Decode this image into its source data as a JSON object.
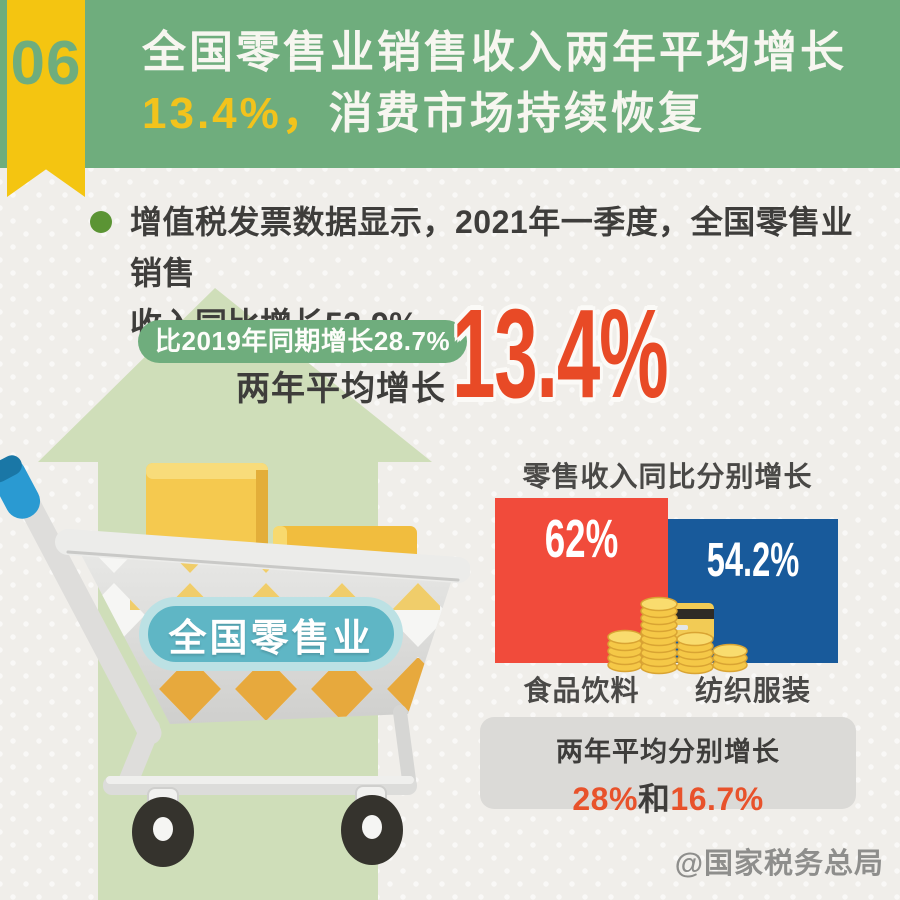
{
  "page": {
    "badge_number": "06",
    "title_line1": "全国零售业销售收入两年平均增长",
    "title_line2_highlight": "13.4%，",
    "title_line2_rest": "消费市场持续恢复",
    "watermark": "@国家税务总局"
  },
  "intro": {
    "line1": "增值税发票数据显示，2021年一季度，全国零售业销售",
    "line2": "收入同比增长52.9%"
  },
  "growth": {
    "badge": "比2019年同期增长28.7%",
    "label": "两年平均增长",
    "big_value": "13.4%"
  },
  "cart": {
    "label": "全国零售业"
  },
  "chart_data": {
    "type": "bar",
    "title": "零售收入同比分别增长",
    "categories": [
      "食品饮料",
      "纺织服装"
    ],
    "values": [
      62,
      54.2
    ],
    "value_labels": [
      "62%",
      "54.2%"
    ],
    "colors": [
      "#f14b3b",
      "#185a9b"
    ],
    "ylim": [
      0,
      62
    ],
    "grid": false,
    "legend": false,
    "annotation": "两年平均分别增长28%和16.7%"
  },
  "footer_box": {
    "title": "两年平均分别增长",
    "value1": "28%",
    "connector": "和",
    "value2": "16.7%"
  },
  "colors": {
    "header_green": "#6fad7d",
    "ribbon_yellow": "#f4c511",
    "title_yellow": "#f2c31c",
    "accent_orange": "#e84a26",
    "bar_red": "#f14b3b",
    "bar_blue": "#185a9b",
    "arrow_green": "#cfdeb9",
    "pill_teal": "#5fb6c5"
  }
}
